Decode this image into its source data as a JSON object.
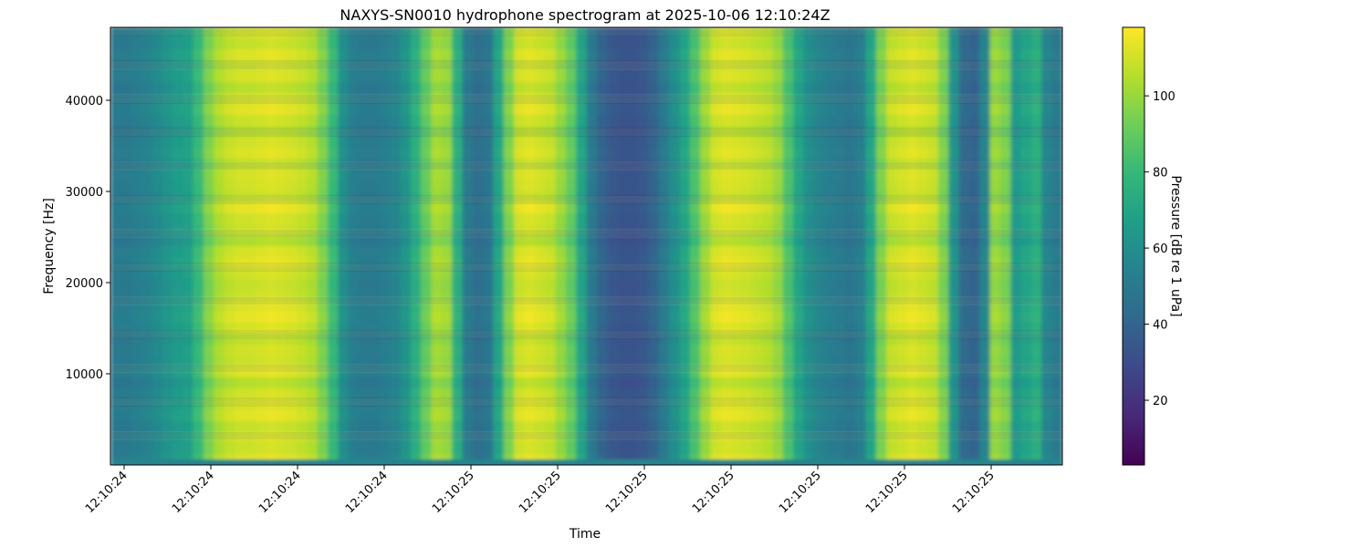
{
  "chart_data": {
    "type": "heatmap",
    "title": "NAXYS-SN0010 hydrophone spectrogram at 2025-10-06 12:10:24Z",
    "xlabel": "Time",
    "ylabel": "Frequency [Hz]",
    "colorbar_label": "Pressure [dB re 1 uPa]",
    "colormap": "viridis",
    "colormap_stops": [
      "#440154",
      "#482878",
      "#3e4989",
      "#31688e",
      "#26828e",
      "#1f9e89",
      "#35b779",
      "#6ece58",
      "#b5de2b",
      "#fde725"
    ],
    "x_tick_labels": [
      "12:10:24",
      "12:10:24",
      "12:10:24",
      "12:10:24",
      "12:10:25",
      "12:10:25",
      "12:10:25",
      "12:10:25",
      "12:10:25",
      "12:10:25",
      "12:10:25"
    ],
    "y_ticks": [
      10000,
      20000,
      30000,
      40000
    ],
    "ylim": [
      0,
      48000
    ],
    "colorbar_ticks": [
      20,
      40,
      60,
      80,
      100
    ],
    "clim": [
      3,
      118
    ],
    "time_profile_db": [
      50,
      50,
      52,
      54,
      58,
      62,
      66,
      68,
      80,
      95,
      104,
      108,
      110,
      110,
      111,
      112,
      111,
      110,
      108,
      105,
      95,
      80,
      60,
      52,
      50,
      50,
      52,
      55,
      62,
      75,
      90,
      102,
      100,
      75,
      50,
      45,
      48,
      70,
      95,
      110,
      112,
      110,
      108,
      100,
      90,
      70,
      50,
      40,
      35,
      33,
      33,
      35,
      40,
      50,
      60,
      70,
      85,
      100,
      110,
      112,
      111,
      110,
      108,
      106,
      100,
      85,
      70,
      60,
      55,
      52,
      50,
      48,
      52,
      70,
      95,
      108,
      110,
      112,
      110,
      108,
      95,
      62,
      42,
      40,
      55,
      100,
      95,
      65,
      70,
      75,
      55,
      50
    ],
    "freq_profile_db": [
      0,
      -2,
      2,
      -1,
      1,
      -4,
      0,
      3,
      -1,
      -5,
      0,
      2,
      -3,
      1,
      0,
      -2,
      4,
      0,
      -1,
      -6,
      1,
      3,
      0,
      -2,
      -1,
      2,
      4,
      1,
      -3,
      0,
      -1,
      2,
      -5,
      0,
      1,
      3,
      -2,
      0,
      -1,
      2
    ],
    "bottom_band_db": 55
  }
}
